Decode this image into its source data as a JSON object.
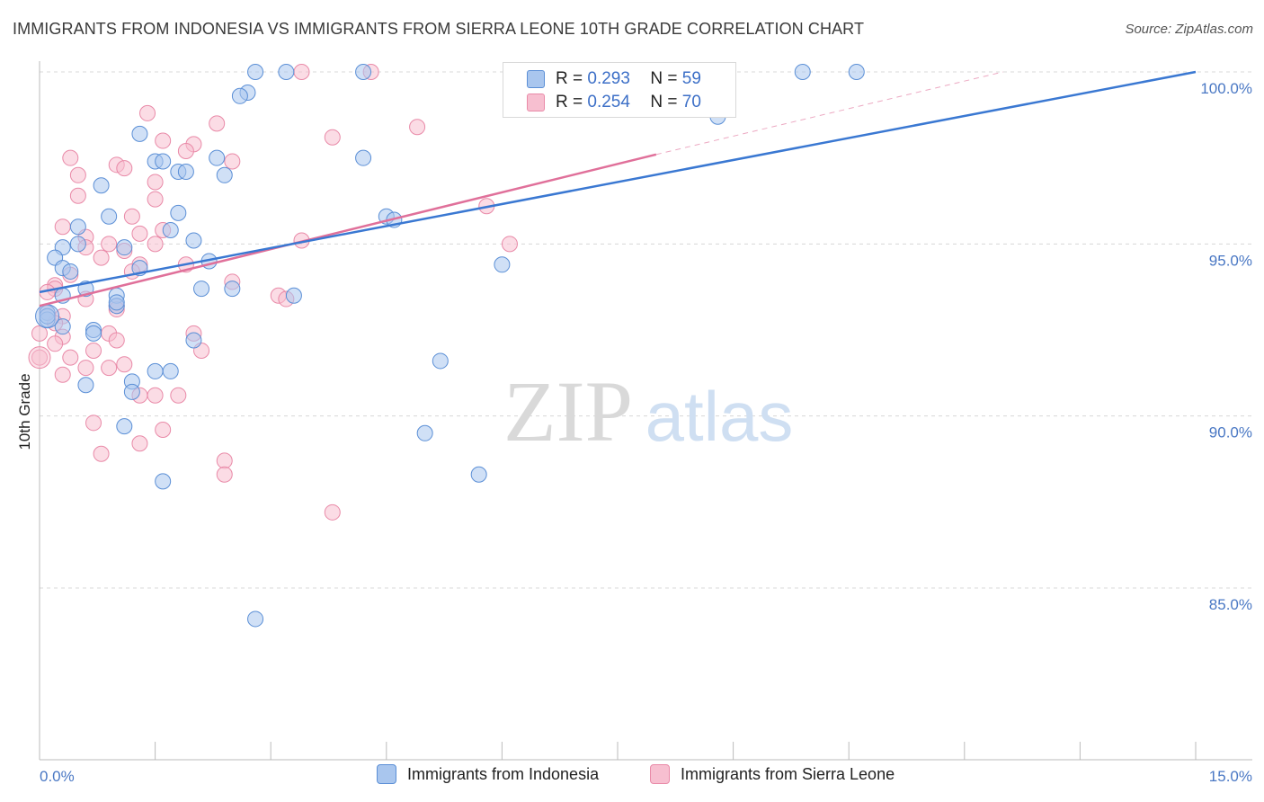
{
  "title": "IMMIGRANTS FROM INDONESIA VS IMMIGRANTS FROM SIERRA LEONE 10TH GRADE CORRELATION CHART",
  "source": "Source: ZipAtlas.com",
  "watermark": {
    "zip": "ZIP",
    "atlas": "atlas"
  },
  "legend": {
    "r_label": "R =",
    "n_label": "N =",
    "series": [
      {
        "name": "Immigrants from Indonesia",
        "r": "0.293",
        "n": "59"
      },
      {
        "name": "Immigrants from Sierra Leone",
        "r": "0.254",
        "n": "70"
      }
    ]
  },
  "colors": {
    "indonesia_fill": "#a9c6ee",
    "indonesia_stroke": "#5b8fd6",
    "indonesia_line": "#3a78d2",
    "sierra_fill": "#f7bfd0",
    "sierra_stroke": "#e98aa8",
    "sierra_line": "#e0709a"
  },
  "chart_data": {
    "type": "scatter",
    "title": "IMMIGRANTS FROM INDONESIA VS IMMIGRANTS FROM SIERRA LEONE 10TH GRADE CORRELATION CHART",
    "xlabel": "",
    "ylabel": "10th Grade",
    "xlim": [
      0,
      15
    ],
    "ylim": [
      80.5,
      100.5
    ],
    "x_tick_labels": [
      "0.0%",
      "15.0%"
    ],
    "y_ticks": [
      85,
      90,
      95,
      100
    ],
    "y_tick_labels": [
      "85.0%",
      "90.0%",
      "95.0%",
      "100.0%"
    ],
    "series": [
      {
        "name": "Immigrants from Indonesia",
        "r": 0.293,
        "n": 59,
        "trend": {
          "x0": 0,
          "y0": 93.6,
          "x1": 15,
          "y1": 100.0
        },
        "points": [
          [
            2.8,
            100
          ],
          [
            3.2,
            100
          ],
          [
            4.2,
            100
          ],
          [
            9.9,
            100
          ],
          [
            10.6,
            100
          ],
          [
            2.7,
            99.4
          ],
          [
            2.6,
            99.3
          ],
          [
            8.8,
            98.7
          ],
          [
            1.3,
            98.2
          ],
          [
            4.2,
            97.5
          ],
          [
            2.3,
            97.5
          ],
          [
            1.5,
            97.4
          ],
          [
            1.6,
            97.4
          ],
          [
            1.8,
            97.1
          ],
          [
            1.9,
            97.1
          ],
          [
            2.4,
            97.0
          ],
          [
            0.8,
            96.7
          ],
          [
            0.9,
            95.8
          ],
          [
            1.8,
            95.9
          ],
          [
            4.5,
            95.8
          ],
          [
            4.6,
            95.7
          ],
          [
            0.5,
            95.5
          ],
          [
            1.7,
            95.4
          ],
          [
            2.0,
            95.1
          ],
          [
            0.3,
            94.9
          ],
          [
            0.5,
            95.0
          ],
          [
            1.1,
            94.9
          ],
          [
            0.2,
            94.6
          ],
          [
            2.2,
            94.5
          ],
          [
            6.0,
            94.4
          ],
          [
            0.3,
            94.3
          ],
          [
            0.4,
            94.2
          ],
          [
            1.3,
            94.3
          ],
          [
            0.6,
            93.7
          ],
          [
            2.1,
            93.7
          ],
          [
            2.5,
            93.7
          ],
          [
            1.0,
            93.5
          ],
          [
            3.3,
            93.5
          ],
          [
            0.3,
            93.5
          ],
          [
            1.0,
            93.2
          ],
          [
            1.0,
            93.3
          ],
          [
            0.1,
            93.0
          ],
          [
            0.1,
            92.8
          ],
          [
            0.7,
            92.5
          ],
          [
            0.7,
            92.4
          ],
          [
            2.0,
            92.2
          ],
          [
            5.2,
            91.6
          ],
          [
            1.5,
            91.3
          ],
          [
            1.7,
            91.3
          ],
          [
            1.2,
            91.0
          ],
          [
            0.6,
            90.9
          ],
          [
            1.2,
            90.7
          ],
          [
            1.1,
            89.7
          ],
          [
            5.0,
            89.5
          ],
          [
            5.7,
            88.3
          ],
          [
            1.6,
            88.1
          ],
          [
            2.8,
            84.1
          ],
          [
            0.1,
            92.9
          ],
          [
            0.3,
            92.6
          ]
        ]
      },
      {
        "name": "Immigrants from Sierra Leone",
        "r": 0.254,
        "n": 70,
        "trend": {
          "x0": 0,
          "y0": 93.2,
          "x1": 8.0,
          "y1": 97.6,
          "dash_x1": 12.5,
          "dash_y1": 100.0
        },
        "points": [
          [
            3.4,
            100
          ],
          [
            4.3,
            100
          ],
          [
            1.4,
            98.8
          ],
          [
            2.3,
            98.5
          ],
          [
            4.9,
            98.4
          ],
          [
            3.8,
            98.1
          ],
          [
            1.6,
            98.0
          ],
          [
            2.0,
            97.9
          ],
          [
            1.9,
            97.7
          ],
          [
            0.4,
            97.5
          ],
          [
            2.5,
            97.4
          ],
          [
            1.0,
            97.3
          ],
          [
            1.1,
            97.2
          ],
          [
            0.5,
            97.0
          ],
          [
            1.5,
            96.8
          ],
          [
            0.5,
            96.4
          ],
          [
            1.5,
            96.3
          ],
          [
            5.8,
            96.1
          ],
          [
            1.2,
            95.8
          ],
          [
            0.3,
            95.5
          ],
          [
            1.6,
            95.4
          ],
          [
            1.3,
            95.3
          ],
          [
            0.6,
            95.2
          ],
          [
            0.9,
            95.0
          ],
          [
            3.4,
            95.1
          ],
          [
            6.1,
            95.0
          ],
          [
            1.5,
            95.0
          ],
          [
            0.6,
            94.9
          ],
          [
            1.1,
            94.8
          ],
          [
            0.8,
            94.6
          ],
          [
            1.3,
            94.4
          ],
          [
            1.9,
            94.4
          ],
          [
            1.2,
            94.2
          ],
          [
            0.4,
            94.1
          ],
          [
            2.5,
            93.9
          ],
          [
            0.2,
            93.8
          ],
          [
            0.2,
            93.7
          ],
          [
            3.1,
            93.5
          ],
          [
            3.2,
            93.4
          ],
          [
            0.6,
            93.4
          ],
          [
            1.0,
            93.2
          ],
          [
            1.0,
            93.1
          ],
          [
            0.1,
            93.0
          ],
          [
            0.3,
            92.9
          ],
          [
            0.2,
            92.7
          ],
          [
            0.0,
            92.4
          ],
          [
            2.0,
            92.4
          ],
          [
            0.9,
            92.4
          ],
          [
            0.3,
            92.3
          ],
          [
            1.0,
            92.2
          ],
          [
            0.7,
            91.9
          ],
          [
            2.1,
            91.9
          ],
          [
            0.0,
            91.7
          ],
          [
            0.4,
            91.7
          ],
          [
            1.1,
            91.5
          ],
          [
            0.6,
            91.4
          ],
          [
            0.9,
            91.4
          ],
          [
            0.3,
            91.2
          ],
          [
            1.3,
            90.6
          ],
          [
            1.5,
            90.6
          ],
          [
            1.8,
            90.6
          ],
          [
            0.7,
            89.8
          ],
          [
            1.6,
            89.6
          ],
          [
            1.3,
            89.2
          ],
          [
            0.8,
            88.9
          ],
          [
            2.4,
            88.7
          ],
          [
            2.4,
            88.3
          ],
          [
            3.8,
            87.2
          ],
          [
            0.1,
            93.6
          ],
          [
            0.2,
            92.1
          ]
        ]
      }
    ]
  }
}
